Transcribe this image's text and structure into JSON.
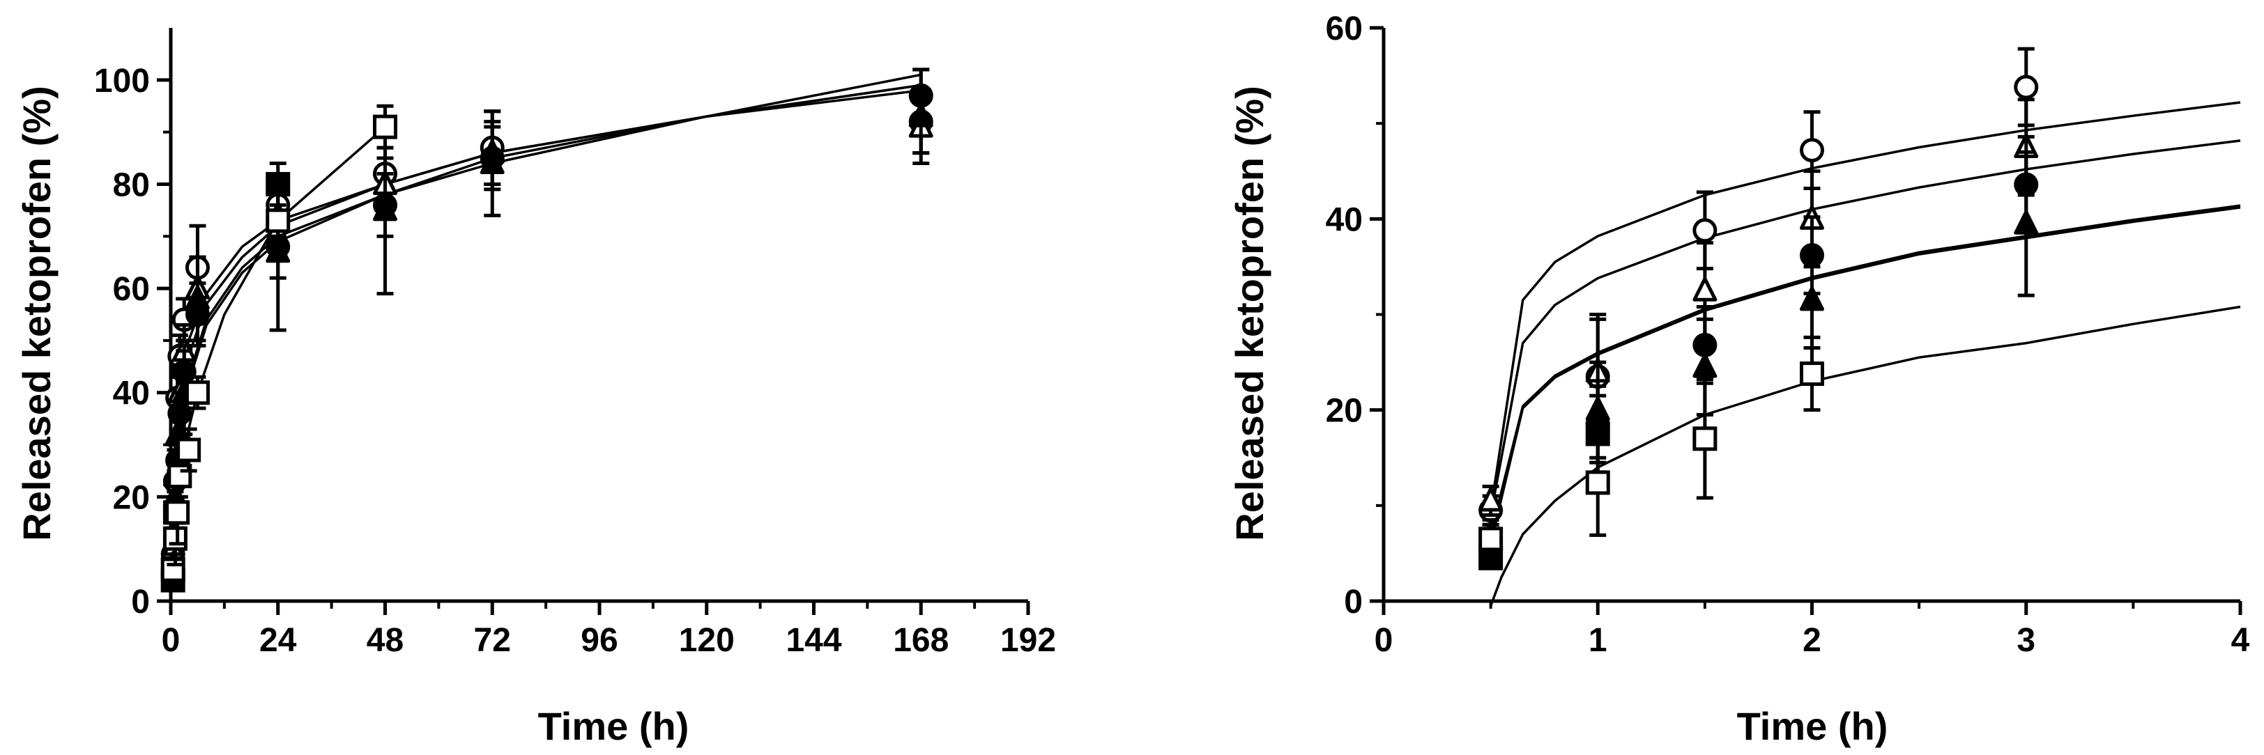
{
  "chart_data": [
    {
      "type": "scatter",
      "xlabel": "Time (h)",
      "ylabel": "Released ketoprofen (%)",
      "xlim": [
        0,
        192
      ],
      "ylim": [
        0,
        110
      ],
      "xticks": [
        0,
        24,
        48,
        72,
        96,
        120,
        144,
        168,
        192
      ],
      "yticks": [
        0,
        20,
        40,
        60,
        80,
        100
      ],
      "xtick_labels": [
        "0",
        "24",
        "48",
        "72",
        "96",
        "120",
        "144",
        "168",
        "192"
      ],
      "ytick_labels": [
        "0",
        "20",
        "40",
        "60",
        "80",
        "100"
      ],
      "grid": false,
      "series": [
        {
          "marker": "open-circle",
          "points": [
            {
              "x": 0.5,
              "y": 9,
              "err": 2
            },
            {
              "x": 1,
              "y": 23,
              "err": 6
            },
            {
              "x": 1.5,
              "y": 39,
              "err": 4
            },
            {
              "x": 2,
              "y": 47,
              "err": 4
            },
            {
              "x": 3,
              "y": 54,
              "err": 4
            },
            {
              "x": 6,
              "y": 64,
              "err": 8
            },
            {
              "x": 24,
              "y": 76,
              "err": 6
            },
            {
              "x": 48,
              "y": 82,
              "err": 5
            },
            {
              "x": 72,
              "y": 87,
              "err": 7
            },
            {
              "x": 168,
              "y": 92,
              "err": 6
            }
          ]
        },
        {
          "marker": "open-triangle",
          "points": [
            {
              "x": 0.5,
              "y": 10,
              "err": 2
            },
            {
              "x": 1,
              "y": 24,
              "err": 6
            },
            {
              "x": 1.5,
              "y": 32,
              "err": 5
            },
            {
              "x": 2,
              "y": 40,
              "err": 5
            },
            {
              "x": 3,
              "y": 48,
              "err": 5
            },
            {
              "x": 6,
              "y": 60,
              "err": 6
            },
            {
              "x": 24,
              "y": 74,
              "err": 6
            },
            {
              "x": 48,
              "y": 80,
              "err": 5
            },
            {
              "x": 72,
              "y": 86,
              "err": 6
            },
            {
              "x": 168,
              "y": 91,
              "err": 5
            }
          ]
        },
        {
          "marker": "filled-circle",
          "points": [
            {
              "x": 0.5,
              "y": 5,
              "err": 1
            },
            {
              "x": 1,
              "y": 18,
              "err": 4
            },
            {
              "x": 1.5,
              "y": 27,
              "err": 4
            },
            {
              "x": 2,
              "y": 36,
              "err": 4
            },
            {
              "x": 3,
              "y": 44,
              "err": 5
            },
            {
              "x": 6,
              "y": 55,
              "err": 6
            },
            {
              "x": 24,
              "y": 68,
              "err": 6
            },
            {
              "x": 48,
              "y": 76,
              "err": 6
            },
            {
              "x": 72,
              "y": 85,
              "err": 6
            },
            {
              "x": 168,
              "y": 97,
              "err": 5
            }
          ]
        },
        {
          "marker": "filled-triangle",
          "points": [
            {
              "x": 0.5,
              "y": 7,
              "err": 2
            },
            {
              "x": 1,
              "y": 20,
              "err": 5
            },
            {
              "x": 1.5,
              "y": 25,
              "err": 5
            },
            {
              "x": 2,
              "y": 32,
              "err": 5
            },
            {
              "x": 3,
              "y": 40,
              "err": 8
            },
            {
              "x": 6,
              "y": 58,
              "err": 8
            },
            {
              "x": 24,
              "y": 67,
              "err": 15
            },
            {
              "x": 48,
              "y": 75,
              "err": 16
            },
            {
              "x": 72,
              "y": 84,
              "err": 10
            },
            {
              "x": 168,
              "y": 93,
              "err": 9
            }
          ]
        },
        {
          "marker": "filled-square",
          "points": [
            {
              "x": 0.5,
              "y": 4,
              "err": 1
            },
            {
              "x": 1,
              "y": 17,
              "err": 4
            },
            {
              "x": 24,
              "y": 80,
              "err": 4
            }
          ]
        },
        {
          "marker": "open-square",
          "points": [
            {
              "x": 0.5,
              "y": 6,
              "err": 2
            },
            {
              "x": 1,
              "y": 12,
              "err": 5
            },
            {
              "x": 1.5,
              "y": 17,
              "err": 6
            },
            {
              "x": 2,
              "y": 24,
              "err": 4
            },
            {
              "x": 4,
              "y": 29,
              "err": 4
            },
            {
              "x": 6,
              "y": 40,
              "err": 3
            },
            {
              "x": 24,
              "y": 73,
              "err": 5
            },
            {
              "x": 48,
              "y": 91,
              "err": 4
            }
          ]
        }
      ],
      "fit_curves": [
        {
          "points": [
            {
              "x": 0.5,
              "y": 5
            },
            {
              "x": 1,
              "y": 18
            },
            {
              "x": 2,
              "y": 30
            },
            {
              "x": 4,
              "y": 42
            },
            {
              "x": 8,
              "y": 53
            },
            {
              "x": 16,
              "y": 63
            },
            {
              "x": 24,
              "y": 69
            },
            {
              "x": 48,
              "y": 78
            },
            {
              "x": 72,
              "y": 85
            },
            {
              "x": 120,
              "y": 93
            },
            {
              "x": 168,
              "y": 99
            }
          ]
        },
        {
          "points": [
            {
              "x": 0.5,
              "y": 7
            },
            {
              "x": 1,
              "y": 20
            },
            {
              "x": 2,
              "y": 32
            },
            {
              "x": 4,
              "y": 43
            },
            {
              "x": 8,
              "y": 54
            },
            {
              "x": 16,
              "y": 64
            },
            {
              "x": 24,
              "y": 70
            },
            {
              "x": 48,
              "y": 78
            },
            {
              "x": 72,
              "y": 84
            },
            {
              "x": 120,
              "y": 93
            },
            {
              "x": 168,
              "y": 101
            }
          ]
        },
        {
          "points": [
            {
              "x": 0.5,
              "y": 9
            },
            {
              "x": 1,
              "y": 24
            },
            {
              "x": 2,
              "y": 38
            },
            {
              "x": 4,
              "y": 47
            },
            {
              "x": 8,
              "y": 57
            },
            {
              "x": 16,
              "y": 66
            },
            {
              "x": 24,
              "y": 72
            },
            {
              "x": 48,
              "y": 80
            },
            {
              "x": 72,
              "y": 86
            },
            {
              "x": 120,
              "y": 93
            },
            {
              "x": 168,
              "y": 98
            }
          ]
        },
        {
          "points": [
            {
              "x": 0.5,
              "y": 10
            },
            {
              "x": 1,
              "y": 26
            },
            {
              "x": 2,
              "y": 40
            },
            {
              "x": 4,
              "y": 50
            },
            {
              "x": 8,
              "y": 59
            },
            {
              "x": 16,
              "y": 68
            },
            {
              "x": 24,
              "y": 73
            },
            {
              "x": 48,
              "y": 80
            },
            {
              "x": 72,
              "y": 86
            },
            {
              "x": 120,
              "y": 93
            },
            {
              "x": 168,
              "y": 99
            }
          ]
        },
        {
          "points": [
            {
              "x": 0.5,
              "y": 6
            },
            {
              "x": 1,
              "y": 12
            },
            {
              "x": 2,
              "y": 22
            },
            {
              "x": 4,
              "y": 33
            },
            {
              "x": 6,
              "y": 40
            },
            {
              "x": 12,
              "y": 55
            },
            {
              "x": 24,
              "y": 73
            },
            {
              "x": 48,
              "y": 91
            }
          ]
        }
      ]
    },
    {
      "type": "scatter",
      "xlabel": "Time (h)",
      "ylabel": "Released ketoprofen (%)",
      "xlim": [
        0,
        4
      ],
      "ylim": [
        0,
        60
      ],
      "xticks": [
        0,
        1,
        2,
        3,
        4
      ],
      "yticks": [
        0,
        20,
        40,
        60
      ],
      "xtick_labels": [
        "0",
        "1",
        "2",
        "3",
        "4"
      ],
      "ytick_labels": [
        "0",
        "20",
        "40",
        "60"
      ],
      "grid": false,
      "series": [
        {
          "marker": "open-circle",
          "points": [
            {
              "x": 0.5,
              "y": 9.5,
              "err": 1.5
            },
            {
              "x": 1,
              "y": 23.5,
              "err": 6
            },
            {
              "x": 1.5,
              "y": 38.8,
              "err": 4
            },
            {
              "x": 2,
              "y": 47.2,
              "err": 4
            },
            {
              "x": 3,
              "y": 53.8,
              "err": 4
            }
          ]
        },
        {
          "marker": "open-triangle",
          "points": [
            {
              "x": 0.5,
              "y": 10.5,
              "err": 1.5
            },
            {
              "x": 1,
              "y": 24,
              "err": 6
            },
            {
              "x": 1.5,
              "y": 32.5,
              "err": 5
            },
            {
              "x": 2,
              "y": 40,
              "err": 5
            },
            {
              "x": 3,
              "y": 47.5,
              "err": 5
            }
          ]
        },
        {
          "marker": "filled-circle",
          "points": [
            {
              "x": 0.5,
              "y": 5.5,
              "err": 1
            },
            {
              "x": 1,
              "y": 18.5,
              "err": 4
            },
            {
              "x": 1.5,
              "y": 26.8,
              "err": 4
            },
            {
              "x": 2,
              "y": 36.2,
              "err": 4
            },
            {
              "x": 3,
              "y": 43.6,
              "err": 5
            }
          ]
        },
        {
          "marker": "filled-triangle",
          "points": [
            {
              "x": 0.5,
              "y": 7,
              "err": 1.5
            },
            {
              "x": 1,
              "y": 20,
              "err": 5
            },
            {
              "x": 1.5,
              "y": 24.5,
              "err": 5
            },
            {
              "x": 2,
              "y": 31.5,
              "err": 5
            },
            {
              "x": 3,
              "y": 39.5,
              "err": 7.5
            }
          ]
        },
        {
          "marker": "filled-square",
          "points": [
            {
              "x": 0.5,
              "y": 4.5,
              "err": 1
            },
            {
              "x": 1,
              "y": 17.5,
              "err": 4
            }
          ]
        },
        {
          "marker": "open-square",
          "points": [
            {
              "x": 0.5,
              "y": 6.5,
              "err": 1.5
            },
            {
              "x": 1,
              "y": 12.4,
              "err": 5.5
            },
            {
              "x": 1.5,
              "y": 17,
              "err": 6.2
            },
            {
              "x": 2,
              "y": 23.8,
              "err": 3.8
            }
          ]
        }
      ],
      "fit_curves": [
        {
          "points": [
            {
              "x": 0.5,
              "y": 9.5
            },
            {
              "x": 0.65,
              "y": 31.5
            },
            {
              "x": 0.8,
              "y": 35.5
            },
            {
              "x": 1,
              "y": 38.2
            },
            {
              "x": 1.5,
              "y": 42.5
            },
            {
              "x": 2,
              "y": 45.3
            },
            {
              "x": 2.5,
              "y": 47.5
            },
            {
              "x": 3,
              "y": 49.3
            },
            {
              "x": 3.5,
              "y": 50.8
            },
            {
              "x": 4,
              "y": 52.2
            }
          ]
        },
        {
          "points": [
            {
              "x": 0.5,
              "y": 9
            },
            {
              "x": 0.65,
              "y": 27
            },
            {
              "x": 0.8,
              "y": 31
            },
            {
              "x": 1,
              "y": 33.8
            },
            {
              "x": 1.5,
              "y": 38
            },
            {
              "x": 2,
              "y": 41
            },
            {
              "x": 2.5,
              "y": 43.3
            },
            {
              "x": 3,
              "y": 45.2
            },
            {
              "x": 3.5,
              "y": 46.8
            },
            {
              "x": 4,
              "y": 48.2
            }
          ]
        },
        {
          "points": [
            {
              "x": 0.5,
              "y": 7
            },
            {
              "x": 0.65,
              "y": 20.4
            },
            {
              "x": 0.8,
              "y": 23.6
            },
            {
              "x": 1,
              "y": 26
            },
            {
              "x": 1.5,
              "y": 30.6
            },
            {
              "x": 2,
              "y": 33.9
            },
            {
              "x": 2.5,
              "y": 36.5
            },
            {
              "x": 3,
              "y": 38.2
            },
            {
              "x": 3.5,
              "y": 39.9
            },
            {
              "x": 4,
              "y": 41.4
            }
          ]
        },
        {
          "points": [
            {
              "x": 0.5,
              "y": 6
            },
            {
              "x": 0.65,
              "y": 20.2
            },
            {
              "x": 0.8,
              "y": 23.4
            },
            {
              "x": 1,
              "y": 25.8
            },
            {
              "x": 1.5,
              "y": 30.4
            },
            {
              "x": 2,
              "y": 33.7
            },
            {
              "x": 2.5,
              "y": 36.3
            },
            {
              "x": 3,
              "y": 38
            },
            {
              "x": 3.5,
              "y": 39.7
            },
            {
              "x": 4,
              "y": 41.2
            }
          ]
        },
        {
          "points": [
            {
              "x": 0.5,
              "y": -0.5
            },
            {
              "x": 0.55,
              "y": 2.5
            },
            {
              "x": 0.65,
              "y": 7
            },
            {
              "x": 0.8,
              "y": 10.5
            },
            {
              "x": 1,
              "y": 14
            },
            {
              "x": 1.5,
              "y": 19.5
            },
            {
              "x": 2,
              "y": 23
            },
            {
              "x": 2.5,
              "y": 25.5
            },
            {
              "x": 3,
              "y": 27
            },
            {
              "x": 3.5,
              "y": 29
            },
            {
              "x": 4,
              "y": 30.8
            }
          ]
        }
      ]
    }
  ]
}
